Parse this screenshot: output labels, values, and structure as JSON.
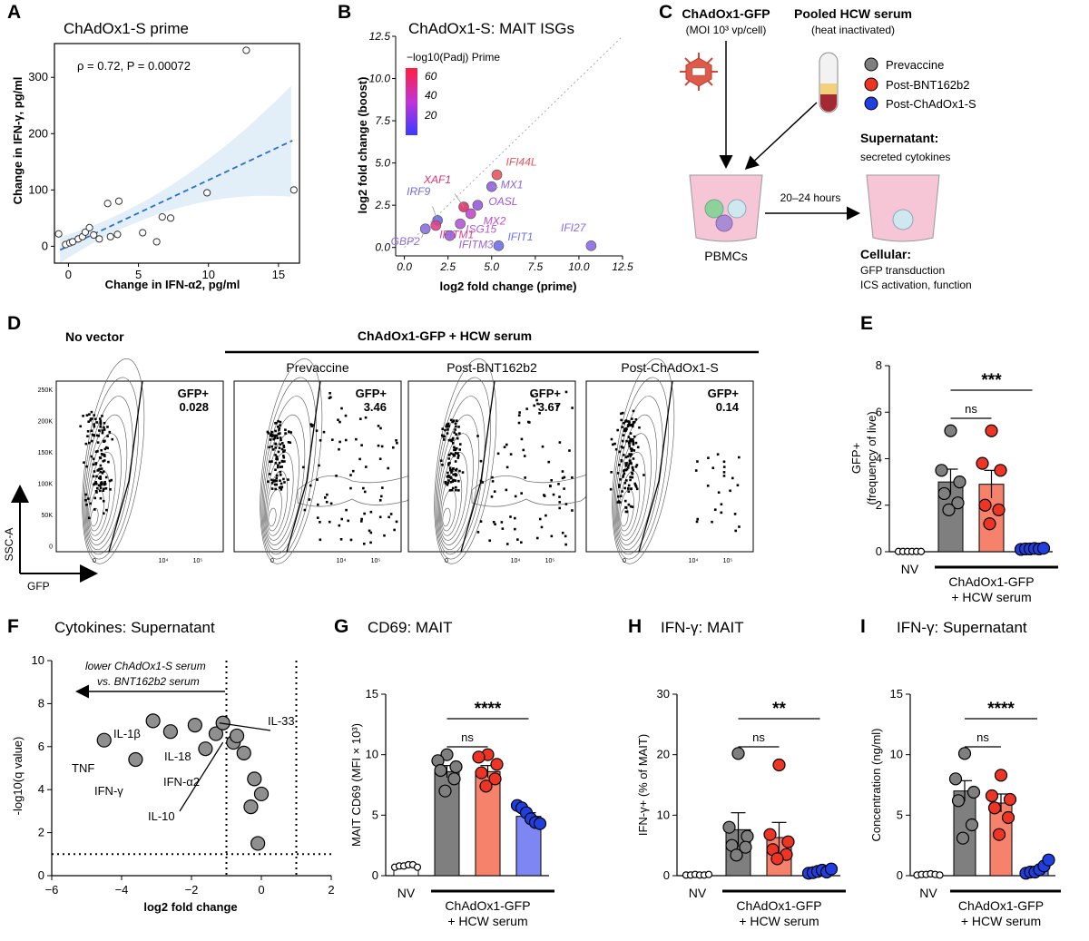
{
  "panels": {
    "A": {
      "label": "A",
      "title": "ChAdOx1-S prime",
      "stat_text": "ρ = 0.72, P = 0.00072"
    },
    "B": {
      "label": "B",
      "title": "ChAdOx1-S: MAIT ISGs",
      "colorbar_title": "−log10(Padj) Prime",
      "colorbar_ticks": [
        "60",
        "40",
        "20"
      ]
    },
    "C": {
      "label": "C",
      "vector_title": "ChAdOx1-GFP",
      "vector_sub": "(MOI 10³ vp/cell)",
      "serum_title": "Pooled HCW serum",
      "serum_sub": "(heat inactivated)",
      "legend": [
        {
          "name": "Prevaccine",
          "color": "#7f7f7f"
        },
        {
          "name": "Post-BNT162b2",
          "color": "#ee3524"
        },
        {
          "name": "Post-ChAdOx1-S",
          "color": "#1f3fe0"
        }
      ],
      "pbmc_label": "PBMCs",
      "time_label": "20–24 hours",
      "supernatant_title": "Supernatant:",
      "supernatant_sub": "secreted cytokines",
      "cellular_title": "Cellular:",
      "cellular_lines": [
        "GFP transduction",
        "ICS activation, function"
      ]
    },
    "D": {
      "label": "D",
      "no_vector": "No vector",
      "header": "ChAdOx1-GFP + HCW serum",
      "plot_titles": [
        "",
        "Prevaccine",
        "Post-BNT162b2",
        "Post-ChAdOx1-S"
      ],
      "gate_label": "GFP+",
      "gate_values": [
        "0.028",
        "3.46",
        "3.67",
        "0.14"
      ],
      "y_axis": "SSC-A",
      "x_axis": "GFP",
      "y_ticks": [
        "250K",
        "200K",
        "150K",
        "100K",
        "50K",
        "0"
      ],
      "x_ticks": [
        "0",
        "10⁴",
        "10⁵"
      ]
    },
    "E": {
      "label": "E"
    },
    "F": {
      "label": "F",
      "title": "Cytokines: Supernatant",
      "arrow_line1": "lower ChAdOx1-S serum",
      "arrow_line2": "vs. BNT162b2 serum"
    },
    "G": {
      "label": "G",
      "title": "CD69: MAIT"
    },
    "H": {
      "label": "H",
      "title": "IFN-γ: MAIT"
    },
    "I": {
      "label": "I",
      "title": "IFN-γ: Supernatant"
    }
  },
  "chart_data": [
    {
      "id": "A",
      "type": "scatter",
      "title": "ChAdOx1-S prime",
      "xlabel": "Change in IFN-α2, pg/ml",
      "ylabel": "Change in IFN-γ, pg/ml",
      "xlim": [
        -1,
        16.5
      ],
      "ylim": [
        -30,
        360
      ],
      "xticks": [
        0,
        5,
        10,
        15
      ],
      "yticks": [
        0,
        100,
        200,
        300
      ],
      "x": [
        -0.7,
        -0.2,
        0.1,
        0.3,
        0.7,
        1.0,
        1.2,
        1.5,
        1.8,
        2.2,
        2.8,
        3.0,
        3.5,
        3.6,
        5.3,
        6.3,
        6.7,
        7.3,
        9.9,
        12.7,
        16.1
      ],
      "y": [
        22,
        3,
        6,
        8,
        13,
        17,
        25,
        33,
        20,
        13,
        76,
        17,
        21,
        80,
        24,
        8,
        52,
        50,
        95,
        348,
        100
      ],
      "fit": {
        "intercept": 0.5,
        "slope": 11.7,
        "style": "dashed"
      },
      "annotation": "ρ = 0.72, P = 0.00072"
    },
    {
      "id": "B",
      "type": "scatter",
      "title": "ChAdOx1-S: MAIT ISGs",
      "xlabel": "log2 fold change (prime)",
      "ylabel": "log2 fold change (boost)",
      "xlim": [
        -0.5,
        12.5
      ],
      "ylim": [
        -0.5,
        12.5
      ],
      "xticks": [
        0.0,
        2.5,
        5.0,
        7.5,
        10.0,
        12.5
      ],
      "yticks": [
        0.0,
        2.5,
        5.0,
        7.5,
        10.0,
        12.5
      ],
      "diagonal": true,
      "colorbar": {
        "label": "−log10(Padj) Prime",
        "ticks": [
          20,
          40,
          60
        ]
      },
      "points": [
        {
          "gene": "IFI44L",
          "x": 5.3,
          "y": 4.3,
          "color": "#e8555f"
        },
        {
          "gene": "MX1",
          "x": 5.0,
          "y": 3.6,
          "color": "#8e62e0"
        },
        {
          "gene": "XAF1",
          "x": 3.4,
          "y": 2.4,
          "color": "#e0306e"
        },
        {
          "gene": "IRF9",
          "x": 1.9,
          "y": 1.6,
          "color": "#6a6ae6"
        },
        {
          "gene": "OASL",
          "x": 4.2,
          "y": 2.5,
          "color": "#9a58dc"
        },
        {
          "gene": "MX2",
          "x": 3.8,
          "y": 2.0,
          "color": "#c249c8"
        },
        {
          "gene": "ISG15",
          "x": 3.2,
          "y": 1.4,
          "color": "#b457d6"
        },
        {
          "gene": "IFITM1",
          "x": 1.8,
          "y": 1.3,
          "color": "#e2408a"
        },
        {
          "gene": "GBP2",
          "x": 1.2,
          "y": 1.1,
          "color": "#8a6ee4"
        },
        {
          "gene": "IFITM3",
          "x": 2.6,
          "y": 0.7,
          "color": "#9b5fdc"
        },
        {
          "gene": "IFIT1",
          "x": 5.4,
          "y": 0.1,
          "color": "#6f6ee8"
        },
        {
          "gene": "IFI27",
          "x": 10.7,
          "y": 0.1,
          "color": "#8a6ae4"
        }
      ]
    },
    {
      "id": "E",
      "type": "bar",
      "ylabel": "GFP+ (frequency of live)",
      "categories": [
        "NV",
        "Prevaccine",
        "Post-BNT162b2",
        "Post-ChAdOx1-S"
      ],
      "tick_labels": [
        "NV"
      ],
      "group_label_lines": [
        "ChAdOx1-GFP",
        "+ HCW serum"
      ],
      "ylim": [
        0,
        8
      ],
      "yticks": [
        0,
        2,
        4,
        6,
        8
      ],
      "values": [
        0.01,
        3.0,
        2.9,
        0.12
      ],
      "errors": [
        0.01,
        0.55,
        0.6,
        0.03
      ],
      "points": [
        [
          0.01,
          0.01,
          0.01,
          0.01,
          0.01,
          0.01
        ],
        [
          5.2,
          3.5,
          3.0,
          2.5,
          2.1,
          1.8
        ],
        [
          5.2,
          3.8,
          3.5,
          2.0,
          1.8,
          1.2
        ],
        [
          0.1,
          0.12,
          0.12,
          0.14,
          0.12,
          0.15
        ]
      ],
      "sig": [
        {
          "from": 1,
          "to": 3,
          "label": "***"
        },
        {
          "from": 1,
          "to": 2,
          "label": "ns"
        }
      ]
    },
    {
      "id": "F",
      "type": "scatter",
      "title": "Cytokines: Supernatant",
      "xlabel": "log2 fold change",
      "ylabel": "-log10(q value)",
      "xlim": [
        -6,
        2
      ],
      "ylim": [
        0,
        10
      ],
      "xticks": [
        -6,
        -4,
        -2,
        0,
        2
      ],
      "yticks": [
        0,
        2,
        4,
        6,
        8,
        10
      ],
      "thresholds": {
        "x": [
          -1,
          1
        ],
        "y": 1.0
      },
      "x": [
        -4.5,
        -3.6,
        -3.1,
        -2.6,
        -1.9,
        -1.6,
        -1.3,
        -1.1,
        -0.8,
        -0.7,
        -0.5,
        -0.2,
        0.0,
        -0.3,
        -0.1
      ],
      "y": [
        6.3,
        5.4,
        7.2,
        6.7,
        7.0,
        5.9,
        6.6,
        7.1,
        6.2,
        6.5,
        5.7,
        4.5,
        3.8,
        3.2,
        1.5
      ],
      "labels": [
        "TNF",
        "IFN-γ",
        "IL-1β",
        "IL-18",
        "IFN-α2",
        "IL-10",
        "IL-33"
      ]
    },
    {
      "id": "G",
      "type": "bar",
      "title": "CD69: MAIT",
      "ylabel": "MAIT CD69 (MFI × 10³)",
      "categories": [
        "NV",
        "Prevaccine",
        "Post-BNT162b2",
        "Post-ChAdOx1-S"
      ],
      "tick_labels": [
        "NV"
      ],
      "group_label_lines": [
        "ChAdOx1-GFP",
        "+ HCW serum"
      ],
      "ylim": [
        0,
        15
      ],
      "yticks": [
        0,
        5,
        10,
        15
      ],
      "values": [
        0.8,
        8.6,
        8.6,
        4.9
      ],
      "errors": [
        0.05,
        0.5,
        0.5,
        0.3
      ],
      "points": [
        [
          0.7,
          0.8,
          0.8,
          0.9,
          0.9,
          0.7
        ],
        [
          10.0,
          9.5,
          9.0,
          8.7,
          8.0,
          7.0
        ],
        [
          10.0,
          9.8,
          9.2,
          8.5,
          8.0,
          7.4
        ],
        [
          5.8,
          5.6,
          5.2,
          4.7,
          4.4,
          4.3
        ]
      ],
      "sig": [
        {
          "from": 1,
          "to": 3,
          "label": "****"
        },
        {
          "from": 1,
          "to": 2,
          "label": "ns"
        }
      ]
    },
    {
      "id": "H",
      "type": "bar",
      "title": "IFN-γ: MAIT",
      "ylabel": "IFN-γ+ (% of MAIT)",
      "categories": [
        "NV",
        "Prevaccine",
        "Post-BNT162b2",
        "Post-ChAdOx1-S"
      ],
      "tick_labels": [
        "NV"
      ],
      "group_label_lines": [
        "ChAdOx1-GFP",
        "+ HCW serum"
      ],
      "ylim": [
        0,
        30
      ],
      "yticks": [
        0,
        10,
        20,
        30
      ],
      "values": [
        0.1,
        7.6,
        6.3,
        0.7
      ],
      "errors": [
        0.05,
        2.8,
        2.5,
        0.2
      ],
      "points": [
        [
          0.1,
          0.1,
          0.2,
          0.1,
          0.1,
          0.2
        ],
        [
          20.2,
          8.0,
          6.5,
          5.0,
          4.7,
          3.4
        ],
        [
          18.3,
          6.8,
          5.6,
          4.3,
          3.5,
          2.8
        ],
        [
          0.4,
          0.5,
          0.7,
          0.9,
          0.6,
          1.1
        ]
      ],
      "sig": [
        {
          "from": 1,
          "to": 3,
          "label": "**"
        },
        {
          "from": 1,
          "to": 2,
          "label": "ns"
        }
      ]
    },
    {
      "id": "I",
      "type": "bar",
      "title": "IFN-γ: Supernatant",
      "ylabel": "Concentration (ng/ml)",
      "categories": [
        "NV",
        "Prevaccine",
        "Post-BNT162b2",
        "Post-ChAdOx1-S"
      ],
      "tick_labels": [
        "NV"
      ],
      "group_label_lines": [
        "ChAdOx1-GFP",
        "+ HCW serum"
      ],
      "ylim": [
        0,
        15
      ],
      "yticks": [
        0,
        5,
        10,
        15
      ],
      "values": [
        0.1,
        7.0,
        6.0,
        0.4
      ],
      "errors": [
        0.05,
        0.85,
        0.75,
        0.12
      ],
      "points": [
        [
          0.05,
          0.1,
          0.1,
          0.15,
          0.1,
          0.05
        ],
        [
          10.1,
          8.0,
          6.9,
          6.2,
          4.2,
          3.1
        ],
        [
          8.3,
          6.6,
          6.3,
          5.6,
          4.8,
          3.4
        ],
        [
          0.2,
          0.3,
          0.3,
          0.5,
          0.8,
          1.3
        ]
      ],
      "sig": [
        {
          "from": 1,
          "to": 3,
          "label": "****"
        },
        {
          "from": 1,
          "to": 2,
          "label": "ns"
        }
      ]
    }
  ],
  "style": {
    "gray": "#7f7f7f",
    "salmon": "#f7826b",
    "blue": "#7d86f2",
    "ci_fill": "#e2eef8",
    "fit_line": "#2a6fcf"
  }
}
